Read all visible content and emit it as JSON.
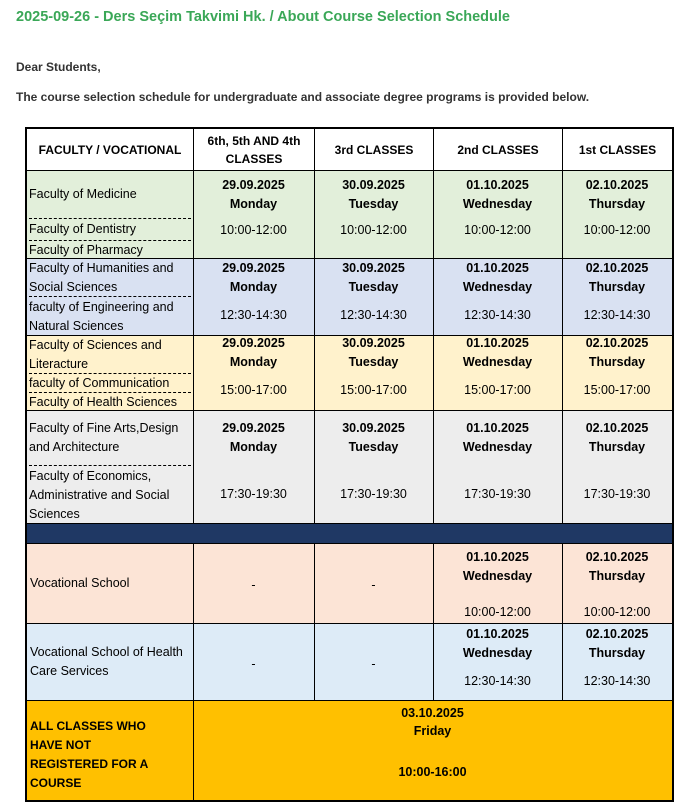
{
  "header": {
    "title": "2025-09-26 - Ders Seçim Takvimi Hk. / About Course Selection Schedule"
  },
  "body": {
    "greeting": "Dear Students,",
    "intro": "The course selection schedule for undergraduate and associate degree programs is provided below."
  },
  "table": {
    "headers": [
      "FACULTY / VOCATIONAL",
      "6th, 5th AND 4th CLASSES",
      "3rd CLASSES",
      "2nd CLASSES",
      "1st CLASSES"
    ],
    "groups": [
      {
        "faculties": [
          "Faculty of Medicine",
          "Faculty of Dentistry",
          "Faculty of Pharmacy"
        ],
        "cells": [
          {
            "date": "29.09.2025",
            "day": "Monday",
            "time": "10:00-12:00"
          },
          {
            "date": "30.09.2025",
            "day": "Tuesday",
            "time": "10:00-12:00"
          },
          {
            "date": "01.10.2025",
            "day": "Wednesday",
            "time": "10:00-12:00"
          },
          {
            "date": "02.10.2025",
            "day": "Thursday",
            "time": "10:00-12:00"
          }
        ]
      },
      {
        "faculties": [
          "Faculty of Humanities and Social Sciences",
          "faculty of Engineering and Natural Sciences"
        ],
        "cells": [
          {
            "date": "29.09.2025",
            "day": "Monday",
            "time": "12:30-14:30"
          },
          {
            "date": "30.09.2025",
            "day": "Tuesday",
            "time": "12:30-14:30"
          },
          {
            "date": "01.10.2025",
            "day": "Wednesday",
            "time": "12:30-14:30"
          },
          {
            "date": "02.10.2025",
            "day": "Thursday",
            "time": "12:30-14:30"
          }
        ]
      },
      {
        "faculties": [
          "Faculty of Sciences and Literacture",
          "faculty of Communication",
          "Faculty of Health Sciences"
        ],
        "cells": [
          {
            "date": "29.09.2025",
            "day": "Monday",
            "time": "15:00-17:00"
          },
          {
            "date": "30.09.2025",
            "day": "Tuesday",
            "time": "15:00-17:00"
          },
          {
            "date": "01.10.2025",
            "day": "Wednesday",
            "time": "15:00-17:00"
          },
          {
            "date": "02.10.2025",
            "day": "Thursday",
            "time": "15:00-17:00"
          }
        ]
      },
      {
        "faculties": [
          "Faculty of Fine Arts,Design and Architecture",
          "Faculty of Economics, Administrative and Social Sciences"
        ],
        "cells": [
          {
            "date": "29.09.2025",
            "day": "Monday",
            "time": "17:30-19:30"
          },
          {
            "date": "30.09.2025",
            "day": "Tuesday",
            "time": "17:30-19:30"
          },
          {
            "date": "01.10.2025",
            "day": "Wednesday",
            "time": "17:30-19:30"
          },
          {
            "date": "02.10.2025",
            "day": "Thursday",
            "time": "17:30-19:30"
          }
        ]
      }
    ],
    "vocational": [
      {
        "faculty": "Vocational School",
        "cells": [
          "-",
          "-",
          {
            "date": "01.10.2025",
            "day": "Wednesday",
            "time": "10:00-12:00"
          },
          {
            "date": "02.10.2025",
            "day": "Thursday",
            "time": "10:00-12:00"
          }
        ]
      },
      {
        "faculty": "Vocational School of Health Care Services",
        "cells": [
          "-",
          "-",
          {
            "date": "01.10.2025",
            "day": "Wednesday",
            "time": "12:30-14:30"
          },
          {
            "date": "02.10.2025",
            "day": "Thursday",
            "time": "12:30-14:30"
          }
        ]
      }
    ],
    "final": {
      "label": "ALL CLASSES WHO HAVE NOT REGISTERED FOR A COURSE",
      "date": "03.10.2025",
      "day": "Friday",
      "time": "10:00-16:00"
    }
  }
}
